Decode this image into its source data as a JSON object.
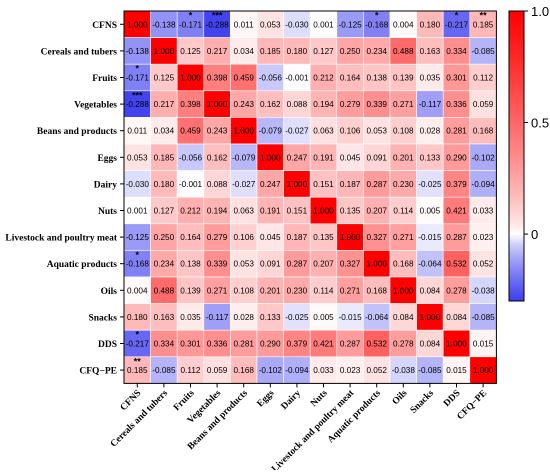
{
  "chart_data": {
    "type": "heatmap",
    "title": "",
    "xlabel": "",
    "ylabel": "",
    "labels": [
      "CFNS",
      "Cereals and tubers",
      "Fruits",
      "Vegetables",
      "Beans and products",
      "Eggs",
      "Dairy",
      "Nuts",
      "Livestock and poultry meat",
      "Aquatic products",
      "Oils",
      "Snacks",
      "DDS",
      "CFQ−PE"
    ],
    "values_text": [
      [
        "1.000",
        "-0.138",
        "-0.171",
        "-0.288",
        "0.011",
        "0.053",
        "-0.030",
        "0.001",
        "-0.125",
        "-0.168",
        "0.004",
        "0.180",
        "-0.217",
        "0.185"
      ],
      [
        "-0.138",
        "1.000",
        "0.125",
        "0.217",
        "0.034",
        "0.185",
        "0.180",
        "0.127",
        "0.250",
        "0.234",
        "0.488",
        "0.163",
        "0.334",
        "-0.085"
      ],
      [
        "-0.171",
        "0.125",
        "1.000",
        "0.398",
        "0.459",
        "-0.056",
        "-0.001",
        "0.212",
        "0.164",
        "0.138",
        "0.139",
        "0.035",
        "0.301",
        "0.112"
      ],
      [
        "-0.288",
        "0.217",
        "0.398",
        "1.000",
        "0.243",
        "0.162",
        "0.088",
        "0.194",
        "0.279",
        "0.339",
        "0.271",
        "-0.117",
        "0.336",
        "0.059"
      ],
      [
        "0.011",
        "0.034",
        "0.459",
        "0.243",
        "1.000",
        "-0.079",
        "-0.027",
        "0.063",
        "0.106",
        "0.053",
        "0.108",
        "0.028",
        "0.281",
        "0.168"
      ],
      [
        "0.053",
        "0.185",
        "-0.056",
        "0.162",
        "-0.079",
        "1.000",
        "0.247",
        "0.191",
        "0.045",
        "0.091",
        "0.201",
        "0.133",
        "0.290",
        "-0.102"
      ],
      [
        "-0.030",
        "0.180",
        "-0.001",
        "0.088",
        "-0.027",
        "0.247",
        "1.000",
        "0.151",
        "0.187",
        "0.287",
        "0.230",
        "-0.025",
        "0.379",
        "-0.094"
      ],
      [
        "0.001",
        "0.127",
        "0.212",
        "0.194",
        "0.063",
        "0.191",
        "0.151",
        "1.000",
        "0.135",
        "0.207",
        "0.114",
        "0.005",
        "0.421",
        "0.033"
      ],
      [
        "-0.125",
        "0.250",
        "0.164",
        "0.279",
        "0.106",
        "0.045",
        "0.187",
        "0.135",
        "1.000",
        "0.327",
        "0.271",
        "-0.015",
        "0.287",
        "0.023"
      ],
      [
        "-0.168",
        "0.234",
        "0.138",
        "0.339",
        "0.053",
        "0.091",
        "0.287",
        "0.207",
        "0.327",
        "1.000",
        "0.168",
        "-0.064",
        "0.532",
        "0.052"
      ],
      [
        "0.004",
        "0.488",
        "0.139",
        "0.271",
        "0.108",
        "0.201",
        "0.230",
        "0.114",
        "0.271",
        "0.168",
        "1.000",
        "0.084",
        "0.278",
        "-0.038"
      ],
      [
        "0.180",
        "0.163",
        "0.035",
        "-0.117",
        "0.028",
        "0.133",
        "-0.025",
        "0.005",
        "-0.015",
        "-0.064",
        "0.084",
        "1.000",
        "0.084",
        "-0.085"
      ],
      [
        "-0.217",
        "0.334",
        "0.301",
        "0.336",
        "0.281",
        "0.290",
        "0.379",
        "0.421",
        "0.287",
        "0.532",
        "0.278",
        "0.084",
        "1.000",
        "0.015"
      ],
      [
        "0.185",
        "-0.085",
        "0.112",
        "0.059",
        "0.168",
        "-0.102",
        "-0.094",
        "0.033",
        "0.023",
        "0.052",
        "-0.038",
        "-0.085",
        "0.015",
        "1.000"
      ]
    ],
    "significance": [
      {
        "row": 0,
        "col": 2,
        "stars": "*"
      },
      {
        "row": 0,
        "col": 3,
        "stars": "***"
      },
      {
        "row": 0,
        "col": 9,
        "stars": "*"
      },
      {
        "row": 0,
        "col": 12,
        "stars": "*"
      },
      {
        "row": 0,
        "col": 13,
        "stars": "**"
      },
      {
        "row": 2,
        "col": 0,
        "stars": "*"
      },
      {
        "row": 3,
        "col": 0,
        "stars": "***"
      },
      {
        "row": 9,
        "col": 0,
        "stars": "*"
      },
      {
        "row": 12,
        "col": 0,
        "stars": "*"
      },
      {
        "row": 13,
        "col": 0,
        "stars": "**"
      }
    ],
    "colorbar": {
      "range": [
        -0.3,
        1.0
      ],
      "ticks": [
        1.0,
        0.5,
        0
      ],
      "tick_labels": [
        "1.0",
        "0.5",
        "0"
      ],
      "colors": {
        "negative": "#3d3df0",
        "zero": "#ffffff",
        "positive": "#ff0000"
      }
    },
    "grid": true,
    "legend_position": "right"
  }
}
